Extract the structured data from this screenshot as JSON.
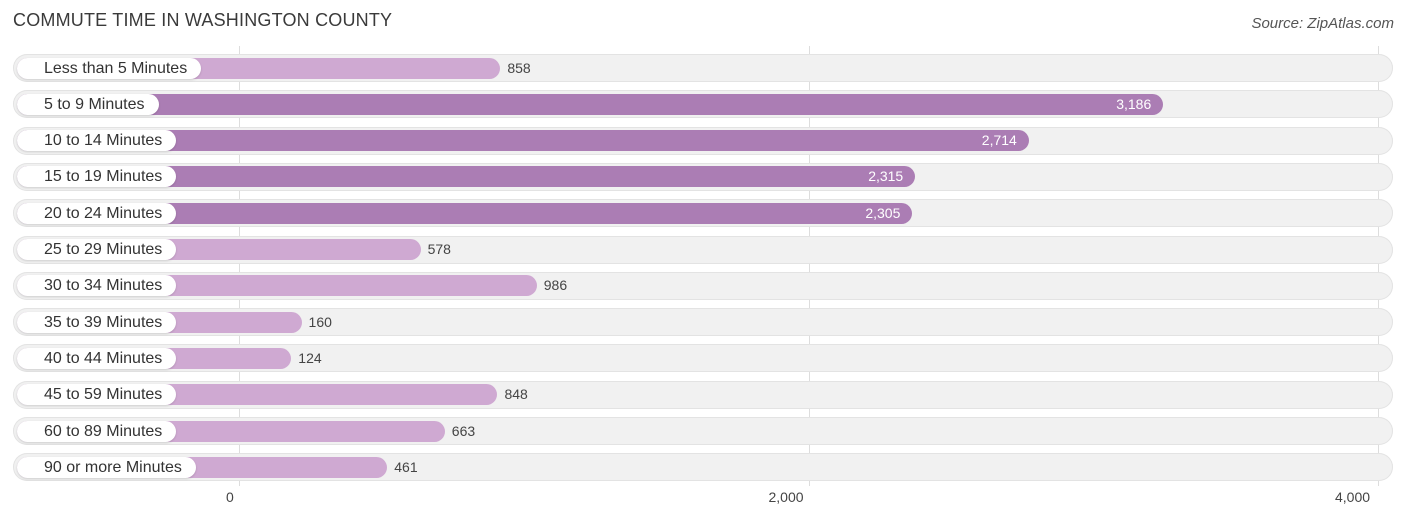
{
  "header": {
    "title": "COMMUTE TIME IN WASHINGTON COUNTY",
    "source": "Source: ZipAtlas.com"
  },
  "colors": {
    "bar_strong": "#ab7db4",
    "bar_light": "#cfa9d2",
    "track": "#f1f1f1",
    "grid": "#dddddd"
  },
  "chart_data": {
    "type": "bar",
    "orientation": "horizontal",
    "title": "COMMUTE TIME IN WASHINGTON COUNTY",
    "xlabel": "",
    "ylabel": "",
    "xlim": [
      0,
      4000
    ],
    "ticks": [
      0,
      2000,
      4000
    ],
    "tick_labels": [
      "0",
      "2,000",
      "4,000"
    ],
    "categories": [
      "Less than 5 Minutes",
      "5 to 9 Minutes",
      "10 to 14 Minutes",
      "15 to 19 Minutes",
      "20 to 24 Minutes",
      "25 to 29 Minutes",
      "30 to 34 Minutes",
      "35 to 39 Minutes",
      "40 to 44 Minutes",
      "45 to 59 Minutes",
      "60 to 89 Minutes",
      "90 or more Minutes"
    ],
    "values": [
      858,
      3186,
      2714,
      2315,
      2305,
      578,
      986,
      160,
      124,
      848,
      663,
      461
    ],
    "value_labels": [
      "858",
      "3,186",
      "2,714",
      "2,315",
      "2,305",
      "578",
      "986",
      "160",
      "124",
      "848",
      "663",
      "461"
    ]
  }
}
